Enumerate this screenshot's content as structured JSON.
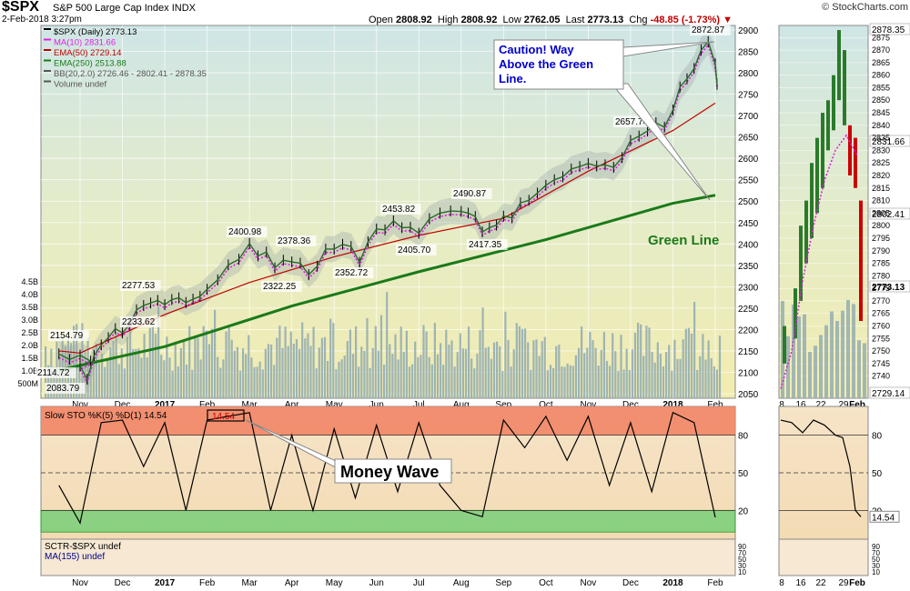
{
  "header": {
    "symbol": "$SPX",
    "name": "S&P 500 Large Cap Index",
    "exchange": "INDX",
    "date": "2-Feb-2018 3:27pm",
    "credit": "© StockCharts.com",
    "open_label": "Open",
    "open": "2808.92",
    "high_label": "High",
    "high": "2808.92",
    "low_label": "Low",
    "low": "2762.05",
    "last_label": "Last",
    "last": "2773.13",
    "chg_label": "Chg",
    "chg": "-48.85 (-1.73%)"
  },
  "colors": {
    "price_line": "#000000",
    "ma10": "#e020e0",
    "ema50": "#c00000",
    "ema250": "#1a7a1a",
    "bband": "#b0b0b0",
    "volume": "#8faab0",
    "overbought": "#f08060",
    "oversold": "#7ad07a",
    "callout_text": "#0000cc"
  },
  "legend": [
    {
      "text": "$SPX (Daily) 2773.13",
      "color": "#000000",
      "icon": "square-icon"
    },
    {
      "text": "MA(10) 2831.66",
      "color": "#e020e0",
      "icon": "dash-icon"
    },
    {
      "text": "EMA(50) 2729.14",
      "color": "#c00000",
      "icon": "line-icon"
    },
    {
      "text": "EMA(250) 2513.88",
      "color": "#1a7a1a",
      "icon": "line-icon"
    },
    {
      "text": "BB(20,2.0) 2726.46 - 2802.41 - 2878.35",
      "color": "#555555",
      "icon": "band-icon"
    },
    {
      "text": "Volume undef",
      "color": "#555555",
      "icon": "bars-icon"
    }
  ],
  "callouts": {
    "caution": "Caution! Way Above the Green Line.",
    "green_line": "Green Line",
    "money_wave": "Money Wave"
  },
  "sto_panel": {
    "legend": "Slow STO %K(5) %D(1) 14.54",
    "value_box": "14.54",
    "levels": [
      "80",
      "50",
      "20"
    ],
    "last_value": "14.54"
  },
  "sctr_panel": {
    "legend1": "SCTR-$SPX undef",
    "legend2": "MA(155) undef",
    "ticks": [
      "90",
      "70",
      "50",
      "30",
      "10"
    ]
  },
  "x_axis": [
    "Nov",
    "Dec",
    "2017",
    "Feb",
    "Mar",
    "Apr",
    "May",
    "Jun",
    "Jul",
    "Aug",
    "Sep",
    "Oct",
    "Nov",
    "Dec",
    "2018",
    "Feb"
  ],
  "x_axis_zoom": [
    "8",
    "16",
    "22",
    "29",
    "Feb"
  ],
  "chart_data": [
    {
      "type": "line",
      "title": "$SPX S&P 500 Large Cap Index",
      "ylabel": "",
      "ylim": [
        2050,
        2900
      ],
      "y_ticks": [
        "2900",
        "2850",
        "2800",
        "2750",
        "2700",
        "2650",
        "2600",
        "2550",
        "2500",
        "2450",
        "2400",
        "2350",
        "2300",
        "2250",
        "2200",
        "2150",
        "2100",
        "2050"
      ],
      "volume_ticks": [
        "4.5B",
        "4.0B",
        "3.5B",
        "3.0B",
        "2.5B",
        "2.0B",
        "1.5B",
        "1.0B",
        "500M"
      ],
      "series": [
        {
          "name": "$SPX (Daily)",
          "points": [
            [
              "Oct-2016",
              2143
            ],
            [
              "Oct-2016",
              2130
            ],
            [
              "Oct-2016",
              2140
            ],
            [
              "Oct-2016",
              2126
            ],
            [
              "Nov-2016",
              2114.72
            ],
            [
              "Nov-2016",
              2083.79
            ],
            [
              "Nov-2016",
              2139
            ],
            [
              "Nov-2016",
              2164
            ],
            [
              "Nov-2016",
              2181
            ],
            [
              "Nov-2016",
              2202
            ],
            [
              "Dec-2016",
              2192
            ],
            [
              "Dec-2016",
              2212
            ],
            [
              "Dec-2016",
              2246
            ],
            [
              "Dec-2016",
              2256
            ],
            [
              "Dec-2016",
              2262
            ],
            [
              "Dec-2016",
              2268
            ],
            [
              "Jan-2017",
              2258
            ],
            [
              "Jan-2017",
              2270
            ],
            [
              "Jan-2017",
              2274
            ],
            [
              "Jan-2017",
              2263
            ],
            [
              "Jan-2017",
              2271
            ],
            [
              "Jan-2017",
              2277.53
            ],
            [
              "Feb-2017",
              2294
            ],
            [
              "Feb-2017",
              2316
            ],
            [
              "Feb-2017",
              2351
            ],
            [
              "Feb-2017",
              2364
            ],
            [
              "Mar-2017",
              2400.98
            ],
            [
              "Mar-2017",
              2372
            ],
            [
              "Mar-2017",
              2381
            ],
            [
              "Mar-2017",
              2344
            ],
            [
              "Mar-2017",
              2362
            ],
            [
              "Apr-2017",
              2358
            ],
            [
              "Apr-2017",
              2355
            ],
            [
              "Apr-2017",
              2328
            ],
            [
              "Apr-2017",
              2348
            ],
            [
              "Apr-2017",
              2388
            ],
            [
              "May-2017",
              2388
            ],
            [
              "May-2017",
              2399
            ],
            [
              "May-2017",
              2394
            ],
            [
              "May-2017",
              2357
            ],
            [
              "May-2017",
              2405
            ],
            [
              "Jun-2017",
              2435
            ],
            [
              "Jun-2017",
              2433
            ],
            [
              "Jun-2017",
              2453.82
            ],
            [
              "Jun-2017",
              2438
            ],
            [
              "Jun-2017",
              2439
            ],
            [
              "Jul-2017",
              2425
            ],
            [
              "Jul-2017",
              2459
            ],
            [
              "Jul-2017",
              2472
            ],
            [
              "Jul-2017",
              2477
            ],
            [
              "Aug-2017",
              2476
            ],
            [
              "Aug-2017",
              2472
            ],
            [
              "Aug-2017",
              2464
            ],
            [
              "Aug-2017",
              2428
            ],
            [
              "Aug-2017",
              2438
            ],
            [
              "Aug-2017",
              2444
            ],
            [
              "Sep-2017",
              2465
            ],
            [
              "Sep-2017",
              2461
            ],
            [
              "Sep-2017",
              2496
            ],
            [
              "Sep-2017",
              2502
            ],
            [
              "Sep-2017",
              2519
            ],
            [
              "Oct-2017",
              2537
            ],
            [
              "Oct-2017",
              2550
            ],
            [
              "Oct-2017",
              2557
            ],
            [
              "Oct-2017",
              2575
            ],
            [
              "Oct-2017",
              2581
            ],
            [
              "Nov-2017",
              2588
            ],
            [
              "Nov-2017",
              2582
            ],
            [
              "Nov-2017",
              2585
            ],
            [
              "Nov-2017",
              2579
            ],
            [
              "Nov-2017",
              2602
            ],
            [
              "Dec-2017",
              2642
            ],
            [
              "Dec-2017",
              2652
            ],
            [
              "Dec-2017",
              2664
            ],
            [
              "Dec-2017",
              2683
            ],
            [
              "Dec-2017",
              2673
            ],
            [
              "Jan-2018",
              2713
            ],
            [
              "Jan-2018",
              2767
            ],
            [
              "Jan-2018",
              2786
            ],
            [
              "Jan-2018",
              2810
            ],
            [
              "Jan-2018",
              2853
            ],
            [
              "Jan-2018",
              2872.87
            ],
            [
              "Feb-2018",
              2821
            ],
            [
              "Feb-2018",
              2773.13
            ]
          ]
        },
        {
          "name": "EMA(250)",
          "points": [
            [
              "Oct-2016",
              2105
            ],
            [
              "Jan-2017",
              2160
            ],
            [
              "Apr-2017",
              2255
            ],
            [
              "Jul-2017",
              2335
            ],
            [
              "Oct-2017",
              2410
            ],
            [
              "Jan-2018",
              2495
            ],
            [
              "Feb-2018",
              2513.88
            ]
          ]
        },
        {
          "name": "EMA(50)",
          "points": [
            [
              "Oct-2016",
              2150
            ],
            [
              "Nov-2016",
              2145
            ],
            [
              "Jan-2017",
              2235
            ],
            [
              "Mar-2017",
              2310
            ],
            [
              "May-2017",
              2370
            ],
            [
              "Jul-2017",
              2420
            ],
            [
              "Sep-2017",
              2460
            ],
            [
              "Nov-2017",
              2570
            ],
            [
              "Jan-2018",
              2665
            ],
            [
              "Feb-2018",
              2729.14
            ]
          ]
        }
      ],
      "annotations": [
        "2154.79",
        "2114.72",
        "2083.79",
        "2277.53",
        "2233.62",
        "2400.98",
        "2322.25",
        "2378.36",
        "2352.72",
        "2453.82",
        "2405.70",
        "2490.87",
        "2417.35",
        "2657.74",
        "2872.87"
      ],
      "right_labels": [
        "2878.35",
        "2831.66",
        "2802.41",
        "2773.13",
        "2729.14"
      ]
    },
    {
      "type": "line",
      "title": "Slow STO %K(5) %D(1) 14.54",
      "ylim": [
        0,
        100
      ],
      "series": [
        {
          "name": "Slow STO %K(5)",
          "points": [
            [
              "Oct-2016",
              40
            ],
            [
              "Nov-2016",
              10
            ],
            [
              "Nov-2016",
              90
            ],
            [
              "Dec-2016",
              92
            ],
            [
              "Dec-2016",
              55
            ],
            [
              "Jan-2017",
              90
            ],
            [
              "Jan-2017",
              20
            ],
            [
              "Feb-2017",
              92
            ],
            [
              "Mar-2017",
              98
            ],
            [
              "Mar-2017",
              20
            ],
            [
              "Apr-2017",
              80
            ],
            [
              "Apr-2017",
              20
            ],
            [
              "May-2017",
              85
            ],
            [
              "May-2017",
              30
            ],
            [
              "Jun-2017",
              88
            ],
            [
              "Jun-2017",
              35
            ],
            [
              "Jul-2017",
              90
            ],
            [
              "Jul-2017",
              40
            ],
            [
              "Aug-2017",
              20
            ],
            [
              "Aug-2017",
              15
            ],
            [
              "Sep-2017",
              92
            ],
            [
              "Sep-2017",
              70
            ],
            [
              "Oct-2017",
              95
            ],
            [
              "Oct-2017",
              60
            ],
            [
              "Nov-2017",
              95
            ],
            [
              "Nov-2017",
              40
            ],
            [
              "Dec-2017",
              90
            ],
            [
              "Dec-2017",
              35
            ],
            [
              "Jan-2018",
              98
            ],
            [
              "Jan-2018",
              90
            ],
            [
              "Feb-2018",
              14.54
            ]
          ]
        }
      ],
      "levels": [
        80,
        50,
        20
      ]
    }
  ]
}
